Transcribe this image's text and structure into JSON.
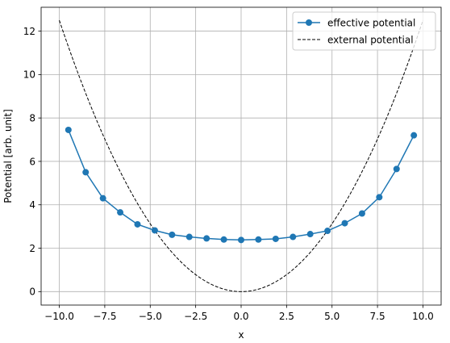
{
  "chart_data": {
    "type": "line",
    "title": "",
    "xlabel": "x",
    "ylabel": "Potential [arb. unit]",
    "xlim": [
      -11.0,
      11.0
    ],
    "ylim": [
      -0.62,
      13.1
    ],
    "grid": true,
    "legend_position": "top-right",
    "x_ticks": [
      -10.0,
      -7.5,
      -5.0,
      -2.5,
      0.0,
      2.5,
      5.0,
      7.5,
      10.0
    ],
    "x_tick_labels": [
      "−10.0",
      "−7.5",
      "−5.0",
      "−2.5",
      "0.0",
      "2.5",
      "5.0",
      "7.5",
      "10.0"
    ],
    "y_ticks": [
      0,
      2,
      4,
      6,
      8,
      10,
      12
    ],
    "y_tick_labels": [
      "0",
      "2",
      "4",
      "6",
      "8",
      "10",
      "12"
    ],
    "series": [
      {
        "name": "effective potential",
        "color": "#1f77b4",
        "style": "solid-with-markers",
        "x": [
          -9.5,
          -8.55,
          -7.6,
          -6.65,
          -5.7,
          -4.75,
          -3.8,
          -2.85,
          -1.9,
          -0.95,
          0.0,
          0.95,
          1.9,
          2.85,
          3.8,
          4.75,
          5.7,
          6.65,
          7.6,
          8.55,
          9.5
        ],
        "y": [
          7.45,
          5.5,
          4.3,
          3.65,
          3.1,
          2.82,
          2.62,
          2.52,
          2.45,
          2.4,
          2.38,
          2.4,
          2.43,
          2.52,
          2.65,
          2.8,
          3.15,
          3.6,
          4.35,
          5.65,
          7.2
        ]
      },
      {
        "name": "external potential",
        "color": "#000000",
        "style": "dashed",
        "function": "0.125*x^2",
        "x_range": [
          -10,
          10
        ]
      }
    ]
  }
}
